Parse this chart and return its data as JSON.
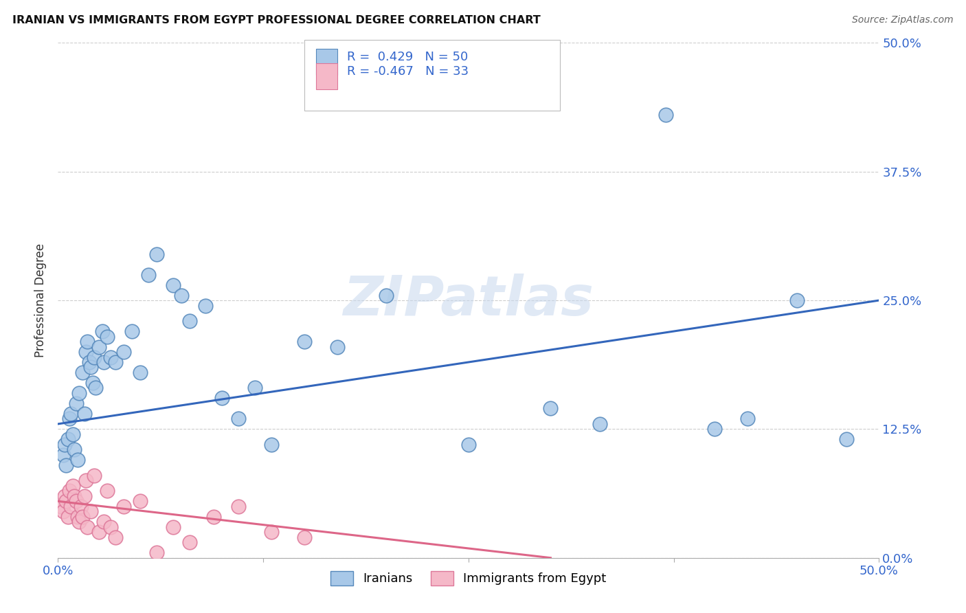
{
  "title": "IRANIAN VS IMMIGRANTS FROM EGYPT PROFESSIONAL DEGREE CORRELATION CHART",
  "source": "Source: ZipAtlas.com",
  "ylabel": "Professional Degree",
  "blue_color": "#a8c8e8",
  "pink_color": "#f5b8c8",
  "blue_edge_color": "#5588bb",
  "pink_edge_color": "#dd7799",
  "blue_line_color": "#3366bb",
  "pink_line_color": "#dd6688",
  "watermark": "ZIPatlas",
  "xlim": [
    0.0,
    50.0
  ],
  "ylim": [
    0.0,
    50.0
  ],
  "blue_line_x0": 0.0,
  "blue_line_y0": 13.0,
  "blue_line_x1": 50.0,
  "blue_line_y1": 25.0,
  "pink_line_x0": 0.0,
  "pink_line_y0": 5.5,
  "pink_line_x1": 30.0,
  "pink_line_y1": 0.0,
  "iranians_x": [
    0.3,
    0.4,
    0.5,
    0.6,
    0.7,
    0.8,
    0.9,
    1.0,
    1.1,
    1.2,
    1.3,
    1.5,
    1.6,
    1.7,
    1.8,
    1.9,
    2.0,
    2.1,
    2.2,
    2.3,
    2.5,
    2.7,
    2.8,
    3.0,
    3.2,
    3.5,
    4.0,
    4.5,
    5.0,
    5.5,
    6.0,
    7.0,
    7.5,
    8.0,
    9.0,
    10.0,
    11.0,
    12.0,
    13.0,
    15.0,
    17.0,
    20.0,
    25.0,
    30.0,
    33.0,
    37.0,
    40.0,
    42.0,
    45.0,
    48.0
  ],
  "iranians_y": [
    10.0,
    11.0,
    9.0,
    11.5,
    13.5,
    14.0,
    12.0,
    10.5,
    15.0,
    9.5,
    16.0,
    18.0,
    14.0,
    20.0,
    21.0,
    19.0,
    18.5,
    17.0,
    19.5,
    16.5,
    20.5,
    22.0,
    19.0,
    21.5,
    19.5,
    19.0,
    20.0,
    22.0,
    18.0,
    27.5,
    29.5,
    26.5,
    25.5,
    23.0,
    24.5,
    15.5,
    13.5,
    16.5,
    11.0,
    21.0,
    20.5,
    25.5,
    11.0,
    14.5,
    13.0,
    43.0,
    12.5,
    13.5,
    25.0,
    11.5
  ],
  "egypt_x": [
    0.2,
    0.3,
    0.4,
    0.5,
    0.6,
    0.7,
    0.8,
    0.9,
    1.0,
    1.1,
    1.2,
    1.3,
    1.4,
    1.5,
    1.6,
    1.7,
    1.8,
    2.0,
    2.2,
    2.5,
    2.8,
    3.0,
    3.2,
    3.5,
    4.0,
    5.0,
    6.0,
    7.0,
    8.0,
    9.5,
    11.0,
    13.0,
    15.0
  ],
  "egypt_y": [
    5.0,
    4.5,
    6.0,
    5.5,
    4.0,
    6.5,
    5.0,
    7.0,
    6.0,
    5.5,
    4.0,
    3.5,
    5.0,
    4.0,
    6.0,
    7.5,
    3.0,
    4.5,
    8.0,
    2.5,
    3.5,
    6.5,
    3.0,
    2.0,
    5.0,
    5.5,
    0.5,
    3.0,
    1.5,
    4.0,
    5.0,
    2.5,
    2.0
  ]
}
